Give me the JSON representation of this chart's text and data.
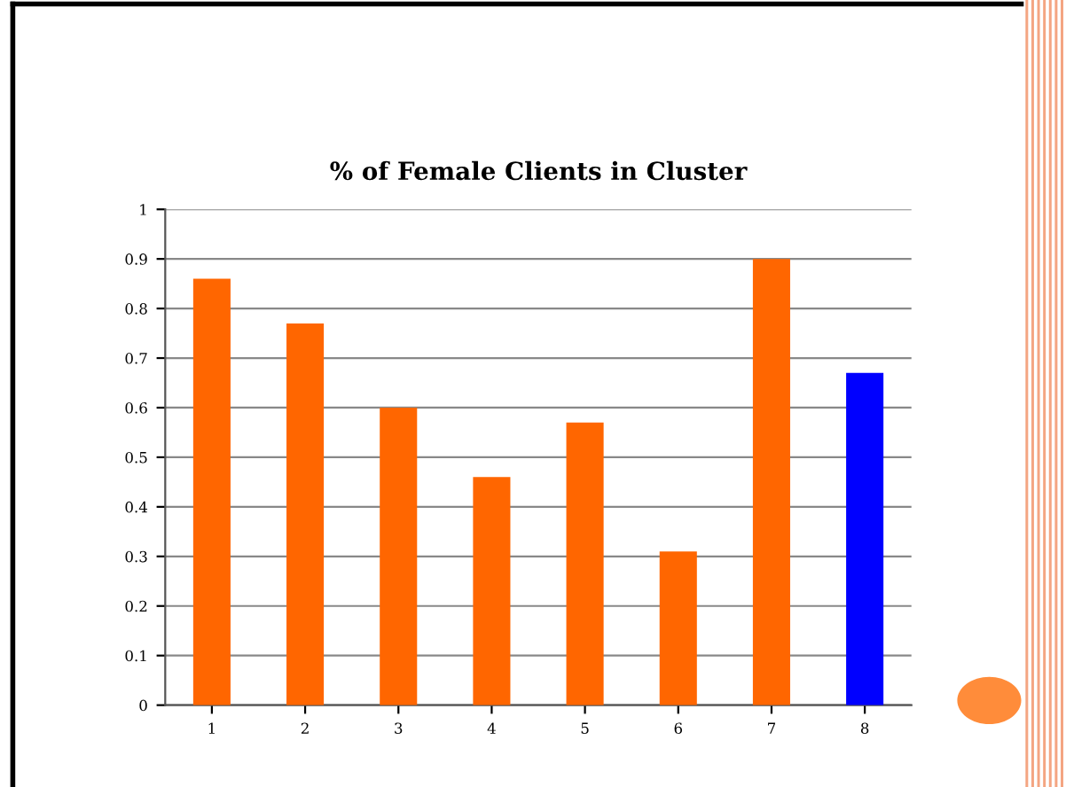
{
  "chart_data": {
    "type": "bar",
    "title": "% of Female Clients in Cluster",
    "categories": [
      "1",
      "2",
      "3",
      "4",
      "5",
      "6",
      "7",
      "8"
    ],
    "values": [
      0.86,
      0.77,
      0.6,
      0.46,
      0.57,
      0.31,
      0.9,
      0.67
    ],
    "colors": [
      "#ff6600",
      "#ff6600",
      "#ff6600",
      "#ff6600",
      "#ff6600",
      "#ff6600",
      "#ff6600",
      "#0000ff"
    ],
    "ylim": [
      0,
      1
    ],
    "yticks": [
      0,
      0.1,
      0.2,
      0.3,
      0.4,
      0.5,
      0.6,
      0.7,
      0.8,
      0.9,
      1
    ],
    "grid": "y",
    "legend": false
  }
}
